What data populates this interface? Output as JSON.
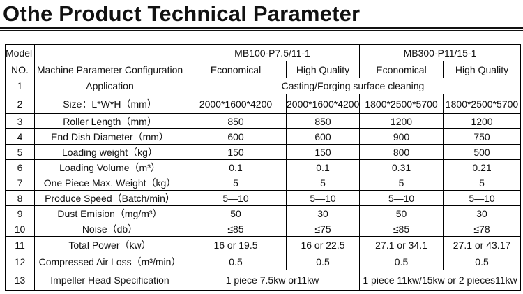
{
  "header": {
    "title": "Othe Product Technical Parameter"
  },
  "table": {
    "rows": [
      [
        "Model",
        "MB100-P7.5/11-1",
        "MB300-P11/15-1"
      ],
      [
        "NO.",
        "Machine Parameter Configuration",
        "Economical",
        "High Quality",
        "Economical",
        "High Quality"
      ],
      [
        "1",
        "Application",
        "Casting/Forging surface cleaning"
      ],
      [
        "2",
        "Size：L*W*H（mm）",
        "2000*1600*4200",
        "2000*1600*4200",
        "1800*2500*5700",
        "1800*2500*5700"
      ],
      [
        "3",
        "Roller Length（mm）",
        "850",
        "850",
        "1200",
        "1200"
      ],
      [
        "4",
        "End Dish Diameter（mm）",
        "600",
        "600",
        "900",
        "750"
      ],
      [
        "5",
        "Loading weight（kg）",
        "150",
        "150",
        "800",
        "500"
      ],
      [
        "6",
        "Loading Volume（m³）",
        "0.1",
        "0.1",
        "0.31",
        "0.21"
      ],
      [
        "7",
        "One Piece Max. Weight（kg）",
        "5",
        "5",
        "5",
        "5"
      ],
      [
        "8",
        "Produce Speed（Batch/min）",
        "5—10",
        "5—10",
        "5—10",
        "5—10"
      ],
      [
        "9",
        "Dust Emision（mg/m³）",
        "50",
        "30",
        "50",
        "30"
      ],
      [
        "10",
        "Noise（db）",
        "≤85",
        "≤75",
        "≤85",
        "≤78"
      ],
      [
        "11",
        "Total Power（kw）",
        "16 or 19.5",
        "16 or 22.5",
        "27.1 or 34.1",
        "27.1 or 43.17"
      ],
      [
        "12",
        "Compressed Air Loss（m³/min）",
        "0.5",
        "0.5",
        "0.5",
        "0.5"
      ],
      [
        "13",
        "Impeller Head Specification",
        "1 piece 7.5kw or11kw",
        "1 piece 11kw/15kw or 2 pieces11kw"
      ]
    ]
  }
}
